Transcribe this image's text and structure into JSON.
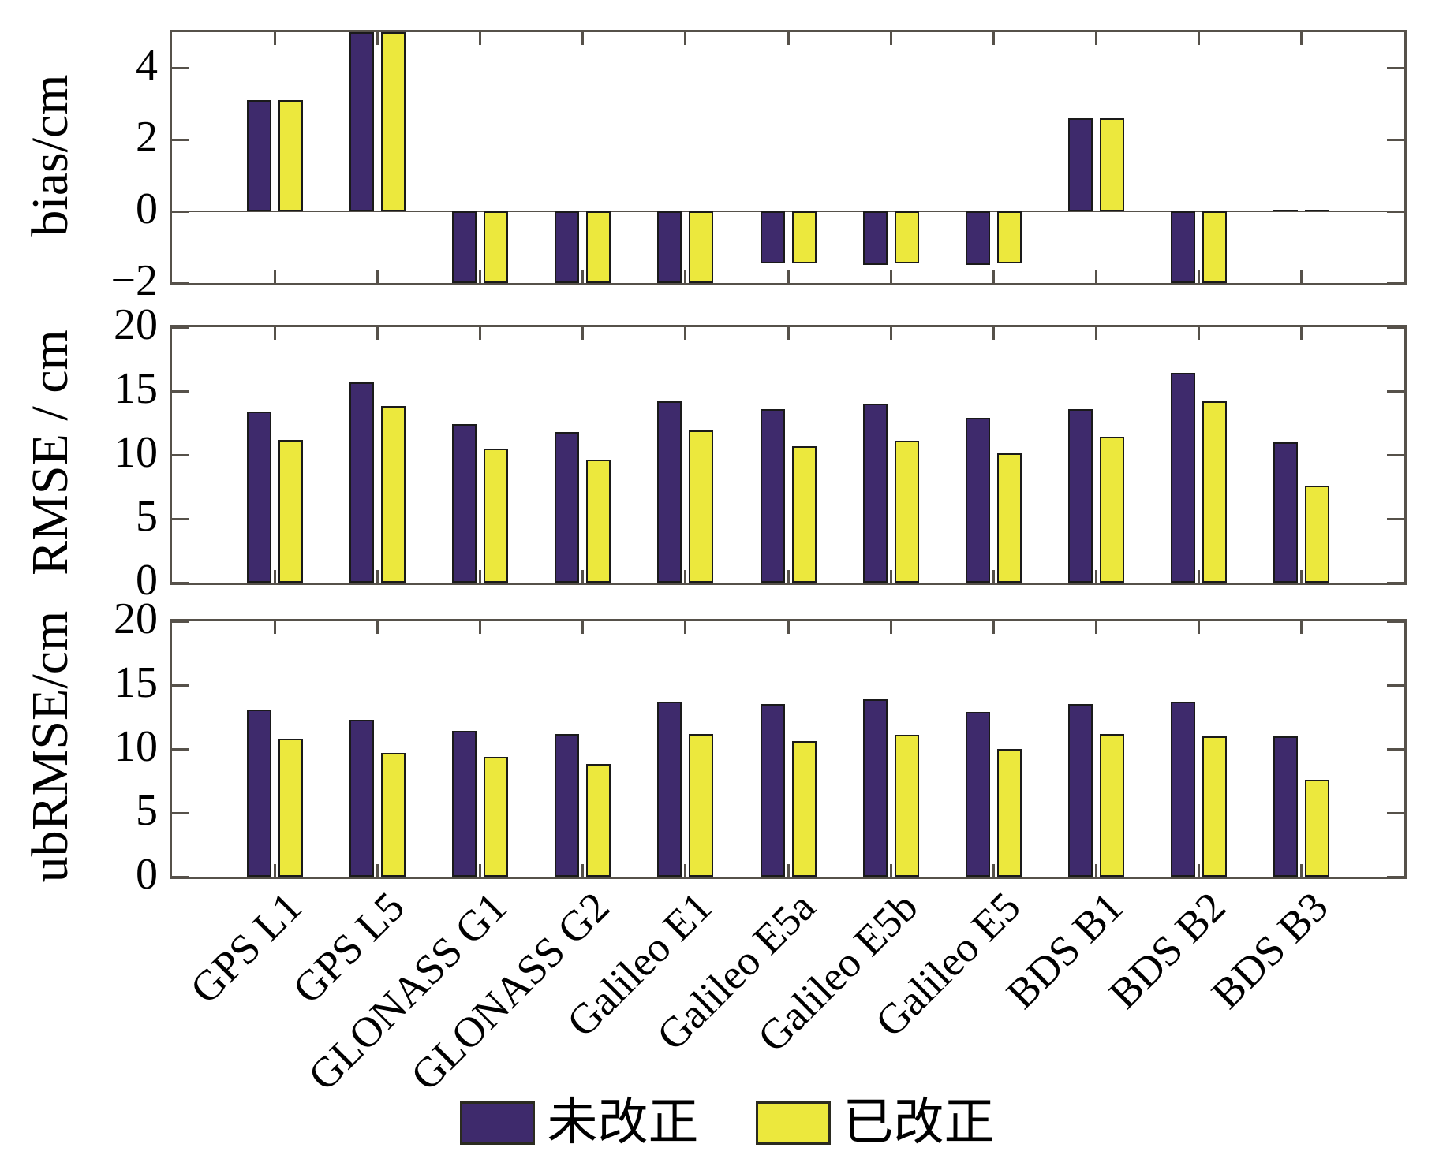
{
  "figure": {
    "background": "#ffffff",
    "axis_color": "#56514a",
    "bar_edge_color": "#1a1a1a"
  },
  "legend": {
    "items": [
      {
        "label": "未改正",
        "color": "#3e2a6c"
      },
      {
        "label": "已改正",
        "color": "#ece83d"
      }
    ]
  },
  "chart_data": [
    {
      "type": "bar",
      "id": "bias",
      "title": "",
      "xlabel": "",
      "ylabel": "bias/cm",
      "ylim": [
        -2,
        5
      ],
      "ytick_values": [
        4,
        2,
        0,
        -2
      ],
      "ytick_labels": [
        "4",
        "2",
        "0",
        "−2"
      ],
      "grid": false,
      "categories": [
        "GPS L1",
        "GPS L5",
        "GLONASS G1",
        "GLONASS G2",
        "Galileo E1",
        "Galileo E5a",
        "Galileo E5b",
        "Galileo E5",
        "BDS B1",
        "BDS B2",
        "BDS B3"
      ],
      "series": [
        {
          "name": "未改正",
          "color": "#3e2a6c",
          "values": [
            3.1,
            5.0,
            -2.0,
            -2.0,
            -2.0,
            -1.45,
            -1.5,
            -1.5,
            2.6,
            -2.0,
            0.05
          ]
        },
        {
          "name": "已改正",
          "color": "#ece83d",
          "values": [
            3.1,
            5.0,
            -2.0,
            -2.0,
            -2.0,
            -1.45,
            -1.45,
            -1.45,
            2.6,
            -2.0,
            0.05
          ]
        }
      ],
      "clipped": {
        "top": [
          "GPS L5"
        ],
        "bottom": [
          "GLONASS G1",
          "GLONASS G2",
          "Galileo E1",
          "BDS B2"
        ]
      }
    },
    {
      "type": "bar",
      "id": "rmse",
      "title": "",
      "xlabel": "",
      "ylabel": "RMSE / cm",
      "ylim": [
        0,
        20
      ],
      "ytick_values": [
        20,
        15,
        10,
        5,
        0
      ],
      "ytick_labels": [
        "20",
        "15",
        "10",
        "5",
        "0"
      ],
      "grid": false,
      "categories": [
        "GPS L1",
        "GPS L5",
        "GLONASS G1",
        "GLONASS G2",
        "Galileo E1",
        "Galileo E5a",
        "Galileo E5b",
        "Galileo E5",
        "BDS B1",
        "BDS B2",
        "BDS B3"
      ],
      "series": [
        {
          "name": "未改正",
          "color": "#3e2a6c",
          "values": [
            13.4,
            15.7,
            12.4,
            11.8,
            14.2,
            13.6,
            14.0,
            12.9,
            13.6,
            16.4,
            11.0
          ]
        },
        {
          "name": "已改正",
          "color": "#ece83d",
          "values": [
            11.2,
            13.8,
            10.5,
            9.6,
            11.9,
            10.7,
            11.1,
            10.1,
            11.4,
            14.2,
            7.6
          ]
        }
      ]
    },
    {
      "type": "bar",
      "id": "ubrmse",
      "title": "",
      "xlabel": "",
      "ylabel": "ubRMSE/cm",
      "ylim": [
        0,
        20
      ],
      "ytick_values": [
        20,
        15,
        10,
        5,
        0
      ],
      "ytick_labels": [
        "20",
        "15",
        "10",
        "5",
        "0"
      ],
      "grid": false,
      "categories": [
        "GPS L1",
        "GPS L5",
        "GLONASS G1",
        "GLONASS G2",
        "Galileo E1",
        "Galileo E5a",
        "Galileo E5b",
        "Galileo E5",
        "BDS B1",
        "BDS B2",
        "BDS B3"
      ],
      "series": [
        {
          "name": "未改正",
          "color": "#3e2a6c",
          "values": [
            13.1,
            12.3,
            11.4,
            11.2,
            13.7,
            13.5,
            13.9,
            12.9,
            13.5,
            13.7,
            11.0
          ]
        },
        {
          "name": "已改正",
          "color": "#ece83d",
          "values": [
            10.8,
            9.7,
            9.4,
            8.8,
            11.2,
            10.6,
            11.1,
            10.0,
            11.2,
            11.0,
            7.6
          ]
        }
      ]
    }
  ]
}
